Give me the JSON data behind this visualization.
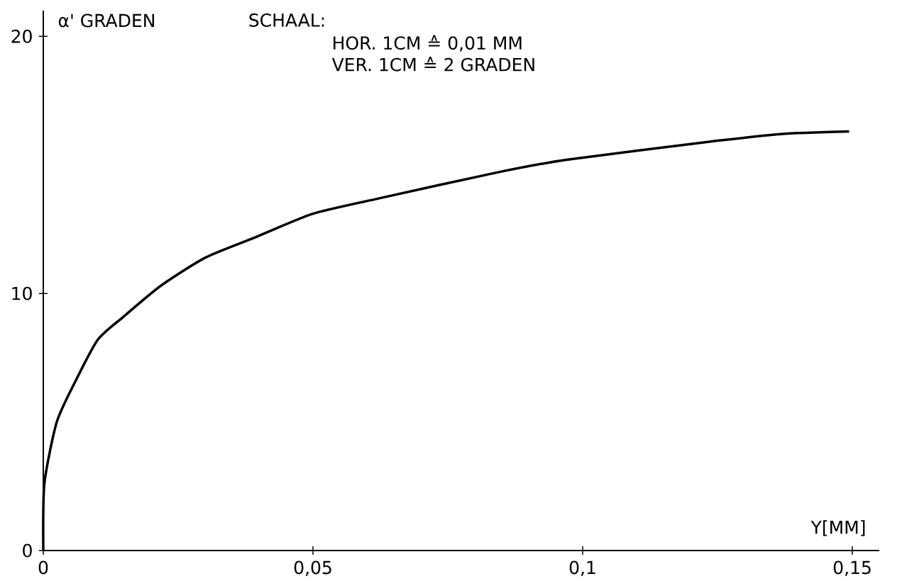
{
  "chart_data": {
    "type": "line",
    "xlabel": "Y[MM]",
    "ylabel": "α' GRADEN",
    "annotations": [
      "SCHAAL:",
      "HOR. 1CM ≙ 0,01 MM",
      "VER. 1CM ≙ 2 GRADEN"
    ],
    "x": [
      0,
      0.0002,
      0.0025,
      0.006,
      0.0101,
      0.0149,
      0.0218,
      0.0301,
      0.0395,
      0.05,
      0.0623,
      0.084,
      0.097,
      0.1235,
      0.1367,
      0.1494
    ],
    "values": [
      0,
      2.6,
      5.0,
      6.6,
      8.2,
      9.1,
      10.3,
      11.4,
      12.2,
      13.1,
      13.7,
      14.7,
      15.2,
      15.9,
      16.2,
      16.3
    ],
    "color": "#000000",
    "xlim": [
      0,
      0.155
    ],
    "ylim": [
      0,
      21
    ],
    "xticks": [
      0,
      {
        "value": 0.05,
        "label": "0,05"
      },
      {
        "value": 0.1,
        "label": "0,1"
      },
      {
        "value": 0.15,
        "label": "0,15"
      }
    ],
    "yticks": [
      0,
      10,
      20
    ]
  }
}
